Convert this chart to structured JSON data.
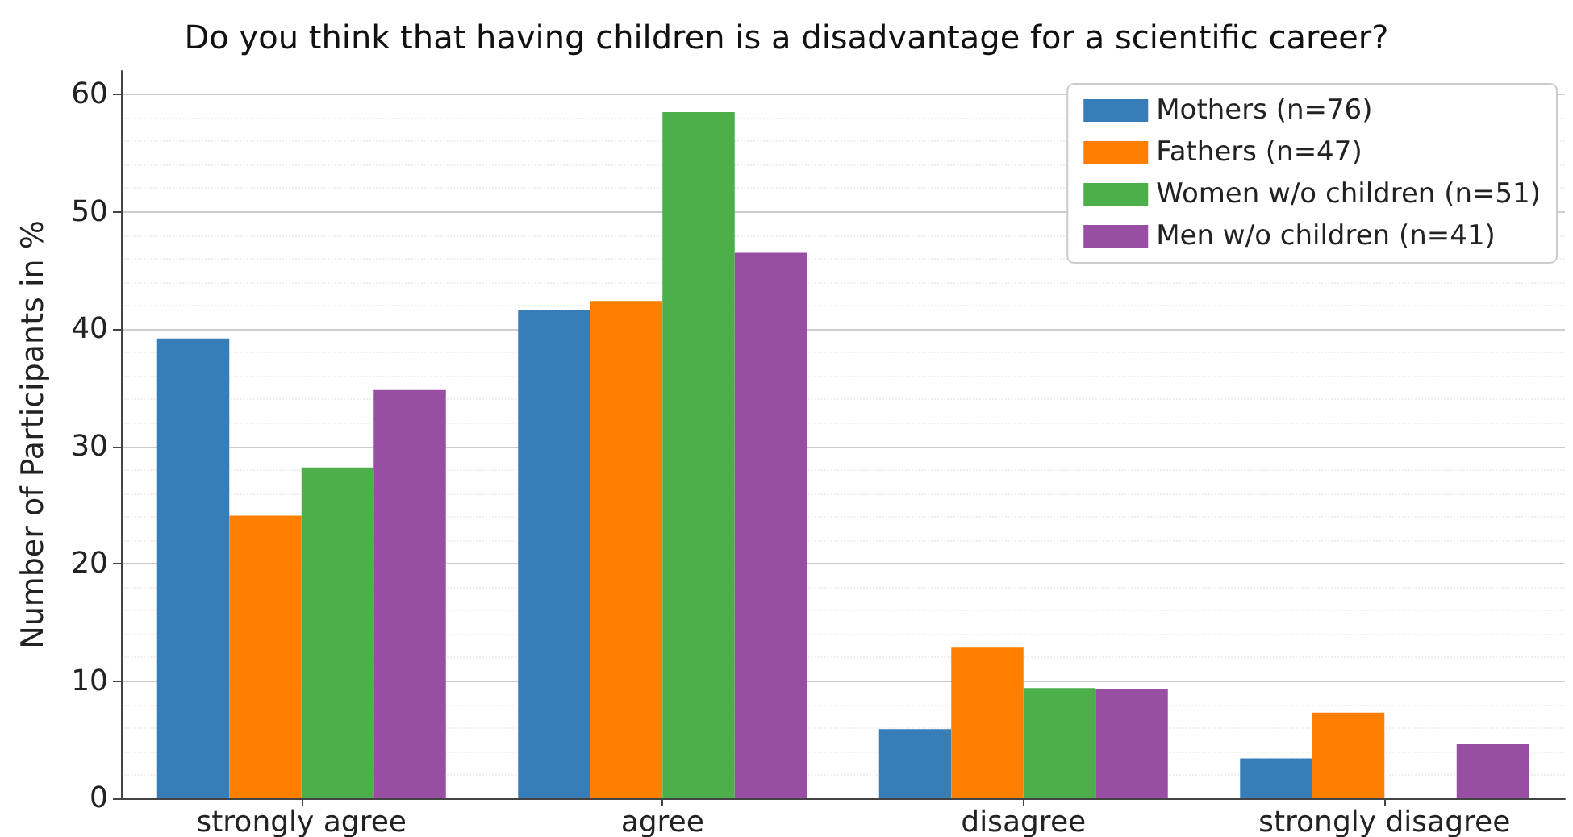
{
  "chart_data": {
    "type": "bar",
    "title": "Do you think that having children is a disadvantage for a scientific career?",
    "ylabel": "Number of Participants in %",
    "categories": [
      "strongly agree",
      "agree",
      "disagree",
      "strongly disagree"
    ],
    "series": [
      {
        "name": "Mothers (n=76)",
        "color": "#377eb8",
        "values": [
          39.2,
          41.6,
          5.9,
          3.4
        ]
      },
      {
        "name": "Fathers (n=47)",
        "color": "#ff7f00",
        "values": [
          24.1,
          42.4,
          12.9,
          7.3
        ]
      },
      {
        "name": "Women w/o children (n=51)",
        "color": "#4daf4a",
        "values": [
          28.2,
          58.5,
          9.4,
          0
        ]
      },
      {
        "name": "Men w/o children (n=41)",
        "color": "#984ea3",
        "values": [
          34.8,
          46.5,
          9.3,
          4.6
        ]
      }
    ],
    "ylim": [
      0,
      62
    ],
    "yticks": [
      0,
      10,
      20,
      30,
      40,
      50,
      60
    ],
    "grid": "y",
    "legend": "top right"
  }
}
